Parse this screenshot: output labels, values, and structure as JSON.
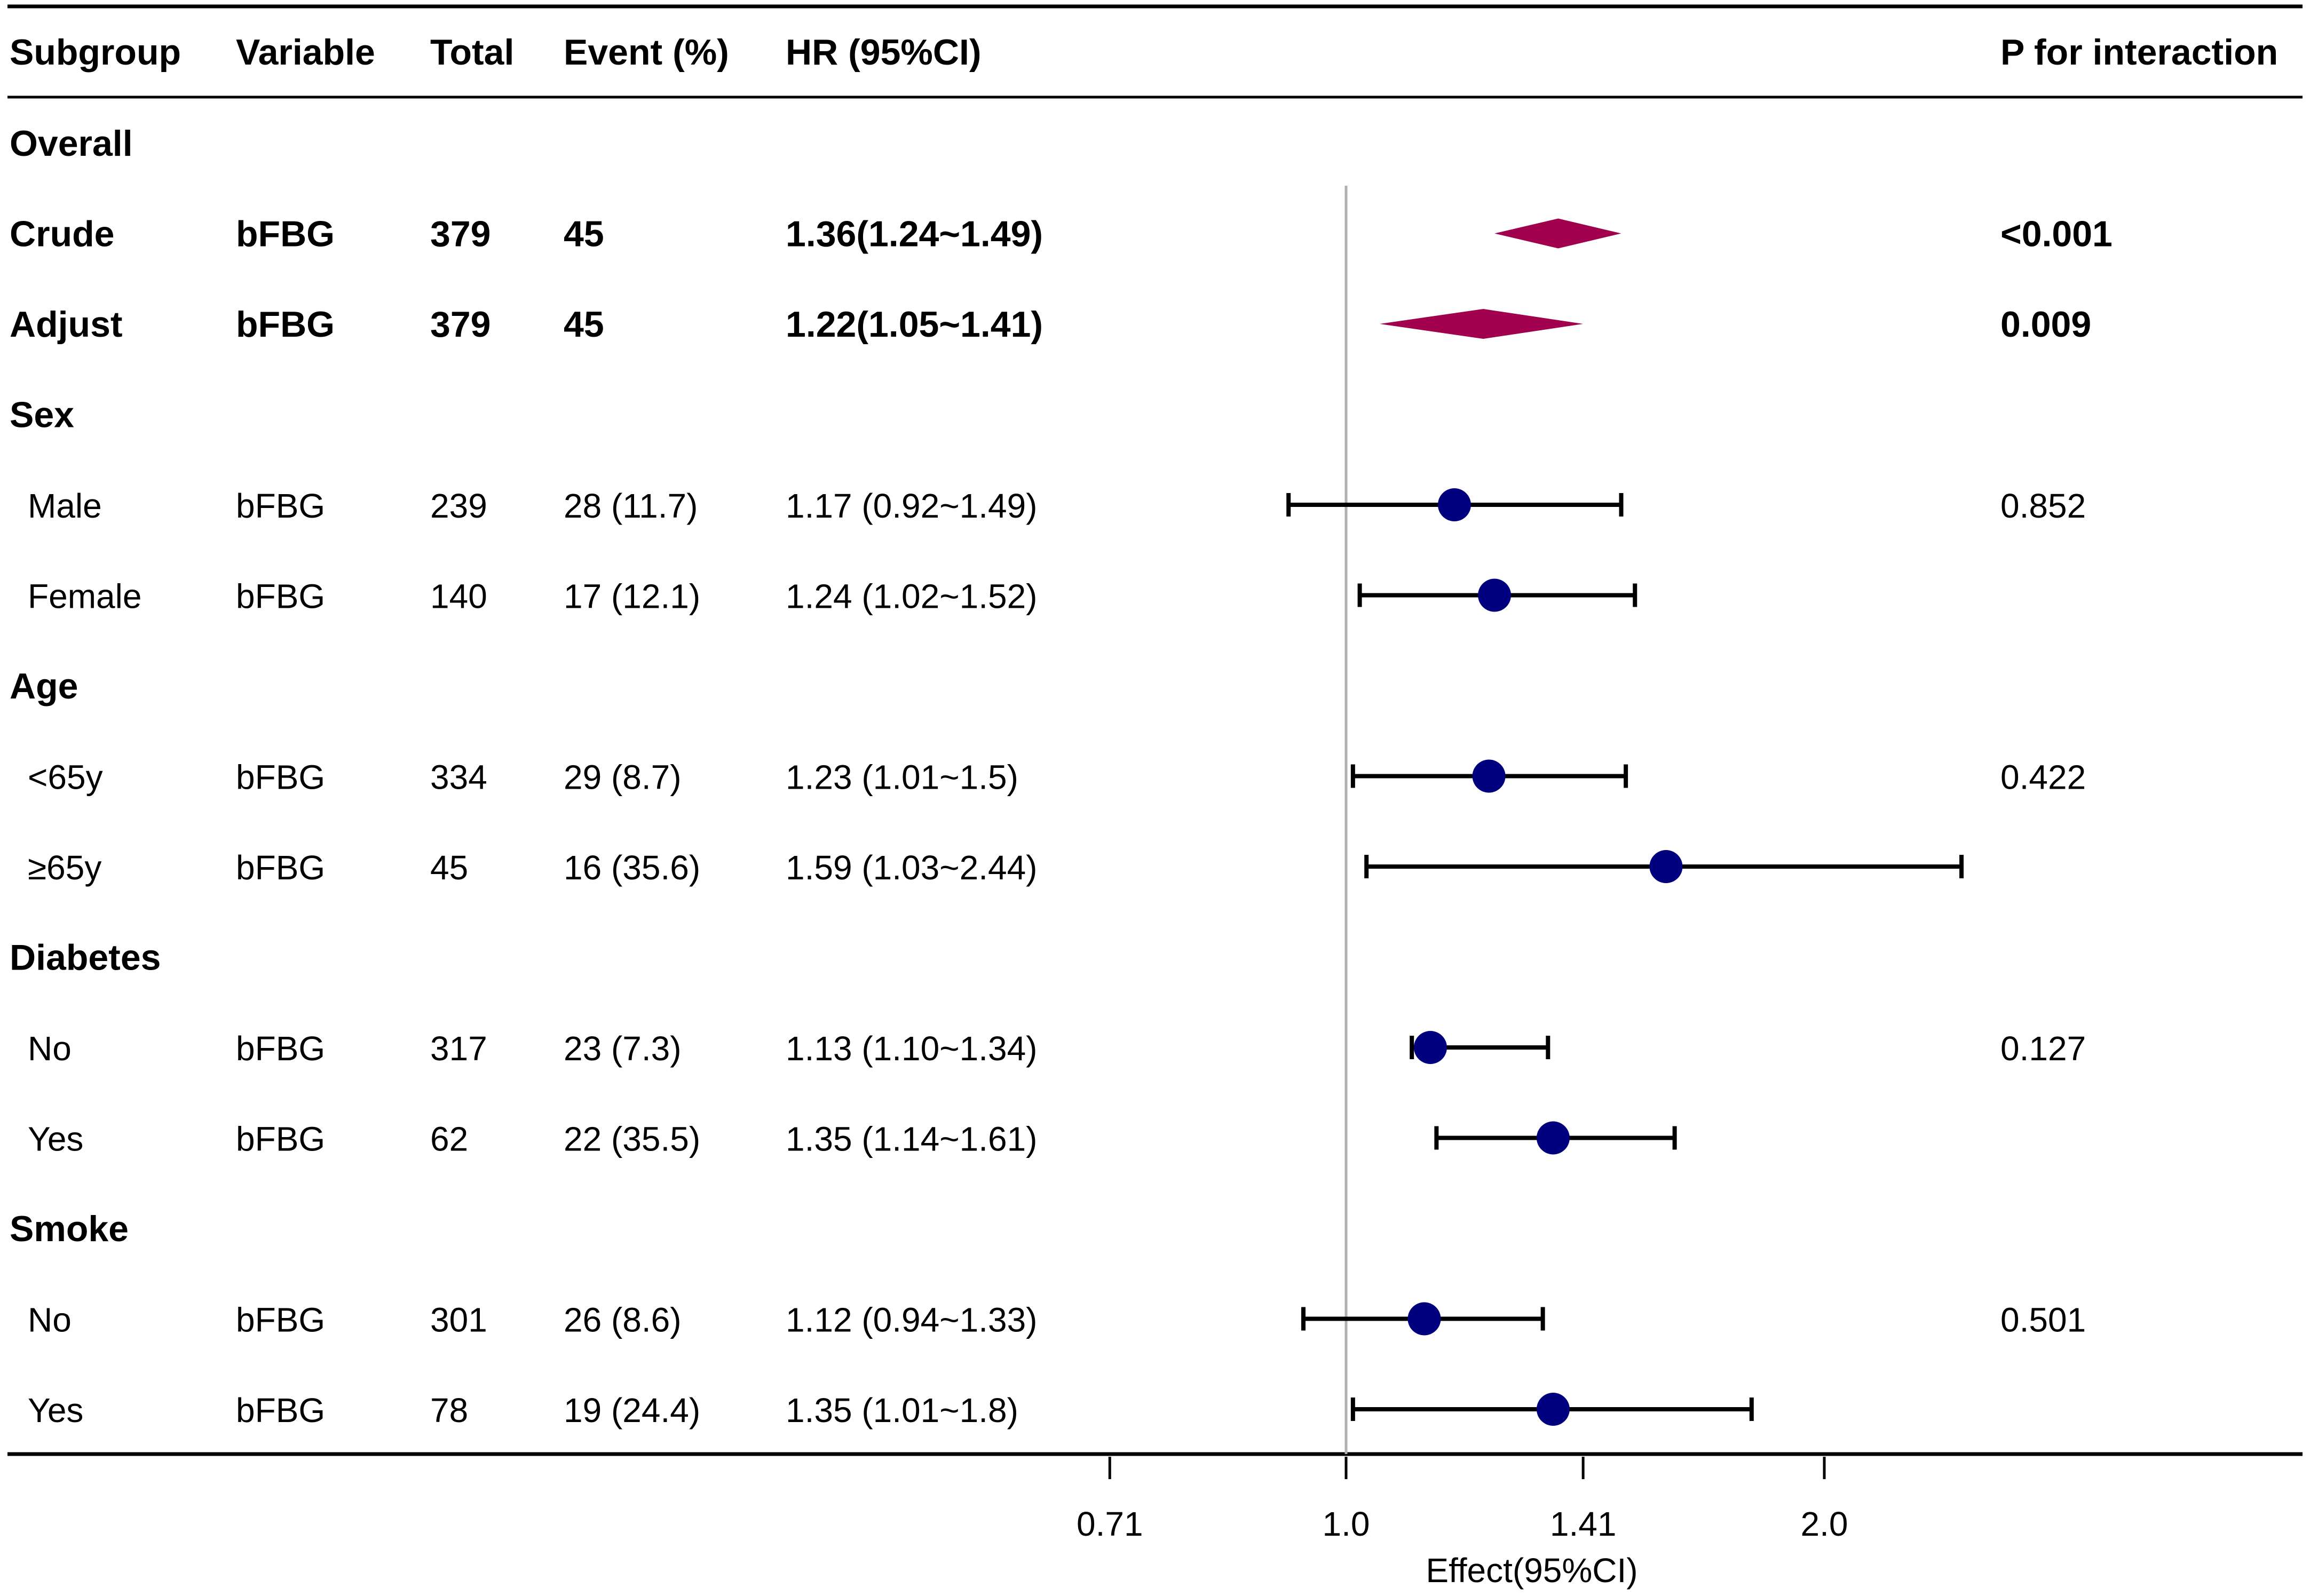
{
  "columns": [
    "Subgroup",
    "Variable",
    "Total",
    "Event (%)",
    "HR (95%CI)",
    "P for interaction"
  ],
  "colors": {
    "diamond": "#a0004e",
    "point": "#00007f",
    "ref_line": "#b0b0b0",
    "rule": "#000000"
  },
  "chart_data": {
    "type": "forest",
    "xlabel": "Effect(95%CI)",
    "scale": "log",
    "xlim": [
      0.71,
      2.0
    ],
    "reference": 1.0,
    "ticks": [
      {
        "value": 0.71,
        "label": "0.71"
      },
      {
        "value": 1.0,
        "label": "1.0"
      },
      {
        "value": 1.41,
        "label": "1.41"
      },
      {
        "value": 2.0,
        "label": "2.0"
      }
    ],
    "rows": [
      {
        "kind": "header",
        "subgroup": "Overall"
      },
      {
        "kind": "summary",
        "subgroup": "Crude",
        "variable": "bFBG",
        "total": "379",
        "event": "45",
        "hr_text": "1.36(1.24~1.49)",
        "p": "<0.001",
        "hr": 1.36,
        "lo": 1.24,
        "hi": 1.49
      },
      {
        "kind": "summary",
        "subgroup": "Adjust",
        "variable": "bFBG",
        "total": "379",
        "event": "45",
        "hr_text": "1.22(1.05~1.41)",
        "p": "0.009",
        "hr": 1.22,
        "lo": 1.05,
        "hi": 1.41
      },
      {
        "kind": "header",
        "subgroup": "Sex"
      },
      {
        "kind": "item",
        "subgroup": "Male",
        "variable": "bFBG",
        "total": "239",
        "event": "28 (11.7)",
        "hr_text": "1.17 (0.92~1.49)",
        "p": "0.852",
        "hr": 1.17,
        "lo": 0.92,
        "hi": 1.49
      },
      {
        "kind": "item",
        "subgroup": "Female",
        "variable": "bFBG",
        "total": "140",
        "event": "17 (12.1)",
        "hr_text": "1.24 (1.02~1.52)",
        "p": "",
        "hr": 1.24,
        "lo": 1.02,
        "hi": 1.52
      },
      {
        "kind": "header",
        "subgroup": "Age"
      },
      {
        "kind": "item",
        "subgroup": "<65y",
        "variable": "bFBG",
        "total": "334",
        "event": "29 (8.7)",
        "hr_text": "1.23 (1.01~1.5)",
        "p": "0.422",
        "hr": 1.23,
        "lo": 1.01,
        "hi": 1.5
      },
      {
        "kind": "item",
        "subgroup": "≥65y",
        "variable": "bFBG",
        "total": "45",
        "event": "16 (35.6)",
        "hr_text": "1.59 (1.03~2.44)",
        "p": "",
        "hr": 1.59,
        "lo": 1.03,
        "hi": 2.44
      },
      {
        "kind": "header",
        "subgroup": "Diabetes"
      },
      {
        "kind": "item",
        "subgroup": "No",
        "variable": "bFBG",
        "total": "317",
        "event": "23 (7.3)",
        "hr_text": "1.13 (1.10~1.34)",
        "p": "0.127",
        "hr": 1.13,
        "lo": 1.1,
        "hi": 1.34
      },
      {
        "kind": "item",
        "subgroup": "Yes",
        "variable": "bFBG",
        "total": "62",
        "event": "22 (35.5)",
        "hr_text": "1.35 (1.14~1.61)",
        "p": "",
        "hr": 1.35,
        "lo": 1.14,
        "hi": 1.61
      },
      {
        "kind": "header",
        "subgroup": "Smoke"
      },
      {
        "kind": "item",
        "subgroup": "No",
        "variable": "bFBG",
        "total": "301",
        "event": "26 (8.6)",
        "hr_text": "1.12 (0.94~1.33)",
        "p": "0.501",
        "hr": 1.12,
        "lo": 0.94,
        "hi": 1.33
      },
      {
        "kind": "item",
        "subgroup": "Yes",
        "variable": "bFBG",
        "total": "78",
        "event": "19 (24.4)",
        "hr_text": "1.35 (1.01~1.8)",
        "p": "",
        "hr": 1.35,
        "lo": 1.01,
        "hi": 1.8
      }
    ]
  }
}
